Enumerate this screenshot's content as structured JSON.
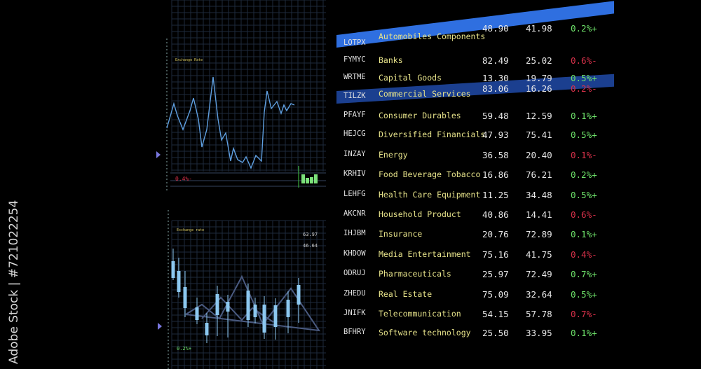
{
  "watermark": "Adobe Stock | #721022254",
  "colors": {
    "background": "#000000",
    "highlight_primary": "#2f6fe0",
    "highlight_secondary": "#1b3f8f",
    "name_text": "#e6e28a",
    "up": "#6ee26a",
    "down": "#d8314a",
    "chart_line": "#5f9fe0",
    "grid": "#27344a"
  },
  "top_chart": {
    "label": "Exchange Rate",
    "change": "0.4%-",
    "change_direction": "down",
    "icons": {
      "marker": "triangle-right-icon",
      "mini_bars": "bar-chart-icon"
    }
  },
  "bottom_chart": {
    "label": "Exchange rate",
    "value_high": "63.97",
    "value_low": "46.64",
    "change": "0.2%+",
    "change_direction": "up"
  },
  "table": {
    "highlighted_rows": [
      0,
      3
    ],
    "rows": [
      {
        "ticker": "LOTPX",
        "name": "Automobiles Components",
        "price": "48.90",
        "value": "41.98",
        "change": "0.2%+",
        "dir": "up"
      },
      {
        "ticker": "FYMYC",
        "name": "Banks",
        "price": "82.49",
        "value": "25.02",
        "change": "0.6%-",
        "dir": "down"
      },
      {
        "ticker": "WRTME",
        "name": "Capital Goods",
        "price": "13.30",
        "value": "19.79",
        "change": "0.5%+",
        "dir": "up"
      },
      {
        "ticker": "TILZK",
        "name": "Commercial Services",
        "price": "83.06",
        "value": "16.26",
        "change": "0.2%-",
        "dir": "down"
      },
      {
        "ticker": "PFAYF",
        "name": "Consumer Durables",
        "price": "59.48",
        "value": "12.59",
        "change": "0.1%+",
        "dir": "up"
      },
      {
        "ticker": "HEJCG",
        "name": "Diversified Financials",
        "price": "47.93",
        "value": "75.41",
        "change": "0.5%+",
        "dir": "up"
      },
      {
        "ticker": "INZAY",
        "name": "Energy",
        "price": "36.58",
        "value": "20.40",
        "change": "0.1%-",
        "dir": "down"
      },
      {
        "ticker": "KRHIV",
        "name": "Food Beverage Tobacco",
        "price": "16.86",
        "value": "76.21",
        "change": "0.2%+",
        "dir": "up"
      },
      {
        "ticker": "LEHFG",
        "name": "Health Care Equipment",
        "price": "11.25",
        "value": "34.48",
        "change": "0.5%+",
        "dir": "up"
      },
      {
        "ticker": "AKCNR",
        "name": "Household Product",
        "price": "40.86",
        "value": "14.41",
        "change": "0.6%-",
        "dir": "down"
      },
      {
        "ticker": "IHJBM",
        "name": "Insurance",
        "price": "20.76",
        "value": "72.89",
        "change": "0.1%+",
        "dir": "up"
      },
      {
        "ticker": "KHDOW",
        "name": "Media Entertainment",
        "price": "75.16",
        "value": "41.75",
        "change": "0.4%-",
        "dir": "down"
      },
      {
        "ticker": "ODRUJ",
        "name": "Pharmaceuticals",
        "price": "25.97",
        "value": "72.49",
        "change": "0.7%+",
        "dir": "up"
      },
      {
        "ticker": "ZHEDU",
        "name": "Real Estate",
        "price": "75.09",
        "value": "32.64",
        "change": "0.5%+",
        "dir": "up"
      },
      {
        "ticker": "JNIFK",
        "name": "Telecommunication",
        "price": "54.15",
        "value": "57.78",
        "change": "0.7%-",
        "dir": "down"
      },
      {
        "ticker": "BFHRY",
        "name": "Software technology",
        "price": "25.50",
        "value": "33.95",
        "change": "0.1%+",
        "dir": "up"
      }
    ]
  }
}
